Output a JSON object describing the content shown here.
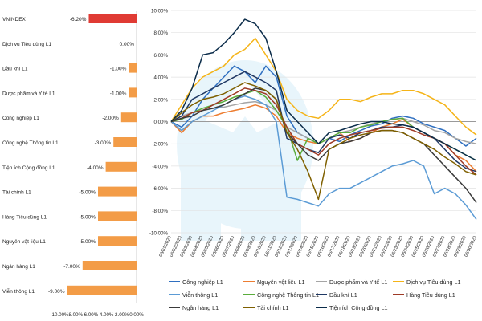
{
  "chart_data": [
    {
      "type": "bar",
      "orientation": "horizontal",
      "categories": [
        "VNINDEX",
        "Dịch vụ Tiêu dùng L1",
        "Dầu khí  L1",
        "Dược phẩm và Y tế L1",
        "Công nghiệp L1",
        "Công nghệ Thông tin L1",
        "Tiện ích Cộng đồng L1",
        "Tài chính L1",
        "Hàng Tiêu dùng L1",
        "Nguyên vật liệu L1",
        "Ngân hàng L1",
        "Viễn thông L1"
      ],
      "values": [
        -6.2,
        0.0,
        -1.0,
        -1.0,
        -2.0,
        -3.0,
        -4.0,
        -5.0,
        -5.0,
        -5.0,
        -7.0,
        -9.0
      ],
      "value_labels": [
        "-6.20%",
        "0.00%",
        "-1.00%",
        "-1.00%",
        "-2.00%",
        "-3.00%",
        "-4.00%",
        "-5.00%",
        "-5.00%",
        "-5.00%",
        "-7.00%",
        "-9.00%"
      ],
      "bar_colors": [
        "#e03b34",
        "#f39c47",
        "#f39c47",
        "#f39c47",
        "#f39c47",
        "#f39c47",
        "#f39c47",
        "#f39c47",
        "#f39c47",
        "#f39c47",
        "#f39c47",
        "#f39c47"
      ],
      "xlim": [
        -10,
        0
      ],
      "tick_labels": [
        "-10.00%",
        "-8.00%",
        "-6.00%",
        "-4.00%",
        "-2.00%",
        "0.00%"
      ]
    },
    {
      "type": "line",
      "x": [
        "06/01/2020",
        "06/02/2020",
        "06/03/2020",
        "06/04/2020",
        "06/05/2020",
        "06/06/2020",
        "06/07/2020",
        "06/08/2020",
        "06/09/2020",
        "06/10/2020",
        "06/11/2020",
        "06/12/2020",
        "06/13/2020",
        "06/14/2020",
        "06/15/2020",
        "06/16/2020",
        "06/17/2020",
        "06/18/2020",
        "06/19/2020",
        "06/20/2020",
        "06/21/2020",
        "06/22/2020",
        "06/23/2020",
        "06/24/2020",
        "06/25/2020",
        "06/26/2020",
        "06/27/2020",
        "06/28/2020",
        "06/29/2020",
        "06/30/2020"
      ],
      "ylim": [
        -10,
        10
      ],
      "y_ticks": [
        -10,
        -8,
        -6,
        -4,
        -2,
        0,
        2,
        4,
        6,
        8,
        10
      ],
      "y_tick_labels": [
        "-10.00%",
        "-8.00%",
        "-6.00%",
        "-4.00%",
        "-2.00%",
        "0.00%",
        "2.00%",
        "4.00%",
        "6.00%",
        "8.00%",
        "10.00%"
      ],
      "series": [
        {
          "name": "Công nghiệp L1",
          "color": "#2f6fc0",
          "values": [
            0,
            -0.5,
            0.5,
            2,
            3,
            4,
            5,
            4.5,
            3.5,
            5,
            4,
            0.5,
            -1,
            -1.5,
            -2,
            -1.5,
            -1.8,
            -1.2,
            -0.8,
            -0.4,
            -0.2,
            0.3,
            0.5,
            0.3,
            -0.2,
            -0.5,
            -0.8,
            -1.5,
            -2.2,
            -1.5
          ]
        },
        {
          "name": "Nguyên vật liệu L1",
          "color": "#ed7d31",
          "values": [
            0,
            -1,
            0,
            0.5,
            0.5,
            0.8,
            1,
            1.2,
            1.5,
            1.2,
            0.5,
            -1,
            -1.5,
            -1.8,
            -2,
            -1.5,
            -1,
            -1.8,
            -1.5,
            -1,
            -0.5,
            -0.2,
            0.2,
            -0.5,
            -1,
            -1.5,
            -2,
            -3,
            -3.5,
            -4.5
          ]
        },
        {
          "name": "Dược phẩm và Y tế L1",
          "color": "#a5a5a5",
          "values": [
            0,
            0.5,
            0.8,
            1,
            1.2,
            1.3,
            1.5,
            1.7,
            1.8,
            1.5,
            1,
            -0.5,
            -1,
            -1.5,
            -2,
            -1.5,
            -1,
            -0.8,
            -0.5,
            -0.2,
            0,
            0.2,
            0.3,
            0,
            -0.3,
            -0.8,
            -1,
            -1.5,
            -1.8,
            -2
          ]
        },
        {
          "name": "Dịch vụ Tiêu dùng L1",
          "color": "#f5b418",
          "values": [
            0,
            1.5,
            3,
            4,
            4.5,
            5,
            6,
            6.5,
            7.5,
            6,
            4.5,
            2,
            1,
            0.5,
            0.3,
            1,
            2,
            2,
            1.8,
            2.2,
            2.5,
            2.5,
            2.8,
            2.8,
            2.5,
            2,
            1.5,
            0.5,
            -0.5,
            -1.2
          ]
        },
        {
          "name": "Viễn thông L1",
          "color": "#5b9bd5",
          "values": [
            0,
            -0.8,
            0,
            0.5,
            1,
            1.5,
            2,
            2.3,
            2,
            1.5,
            0,
            -6.8,
            -7,
            -7.3,
            -7.6,
            -6.5,
            -6,
            -6,
            -5.5,
            -5,
            -4.5,
            -4,
            -3.8,
            -3.5,
            -4,
            -6.5,
            -6,
            -6.5,
            -7.5,
            -8.8
          ]
        },
        {
          "name": "Công nghệ Thông tin L1",
          "color": "#5aad3c",
          "values": [
            0,
            0.2,
            0.8,
            1.2,
            1.5,
            1.8,
            2.2,
            2.5,
            2.8,
            2.2,
            1,
            -0.5,
            -3.5,
            -1.5,
            -2,
            -1.5,
            -1,
            -1,
            -0.5,
            -0.3,
            0,
            0.2,
            0.3,
            -0.5,
            -1,
            -1.5,
            -2,
            -2.5,
            -3,
            -3.5
          ]
        },
        {
          "name": "Dầu khí L1",
          "color": "#1f3864",
          "values": [
            0,
            0.5,
            2,
            2.5,
            3,
            3.5,
            4,
            4.5,
            4,
            3.5,
            2.8,
            -1.5,
            -2,
            -2.5,
            -2.8,
            -1.5,
            -1.2,
            -1.5,
            -1,
            -0.8,
            -0.5,
            -0.5,
            -0.3,
            -0.5,
            -1,
            -1.5,
            -2.5,
            -3.5,
            -4.2,
            -4.5
          ]
        },
        {
          "name": "Hàng Tiêu dùng L1",
          "color": "#9e3a26",
          "values": [
            0,
            0.3,
            0.8,
            1,
            1.5,
            2,
            2.5,
            3,
            2.8,
            2.5,
            1.5,
            -0.5,
            -2,
            -2.5,
            -3,
            -2,
            -1.5,
            -1.2,
            -1,
            -0.8,
            -0.6,
            -0.5,
            -0.5,
            -0.8,
            -1.2,
            -1.5,
            -2,
            -3,
            -4,
            -4.8
          ]
        },
        {
          "name": "Ngân hàng L1",
          "color": "#3a3a3a",
          "values": [
            0,
            0.3,
            0.5,
            1,
            1.2,
            1.5,
            2,
            2.5,
            3,
            2.8,
            2,
            -1,
            -2,
            -3,
            -3.5,
            -2.5,
            -2,
            -1.8,
            -1.5,
            -1,
            -0.8,
            -0.8,
            -1,
            -1.5,
            -2,
            -3,
            -4,
            -5,
            -6,
            -7.3
          ]
        },
        {
          "name": "Tài chính L1",
          "color": "#7f6000",
          "values": [
            0,
            0.8,
            1.5,
            2,
            2.2,
            2.5,
            3,
            3.5,
            3.2,
            2.8,
            2,
            -1,
            -2.5,
            -4.5,
            -7,
            -2.5,
            -2,
            -1.5,
            -1.2,
            -1,
            -0.8,
            -0.8,
            -1,
            -1.5,
            -2,
            -2.5,
            -3.2,
            -3.8,
            -4.5,
            -4.8
          ]
        },
        {
          "name": "Tiện ích Cộng đồng L1",
          "color": "#0b2c4a",
          "values": [
            0,
            1,
            3,
            6,
            6.2,
            7,
            8,
            9.2,
            8.8,
            7.5,
            4.5,
            1,
            0,
            -1,
            -2,
            -1,
            -0.8,
            -0.5,
            -0.2,
            0,
            0,
            -0.2,
            -0.3,
            -0.5,
            -1,
            -1.5,
            -2,
            -2.5,
            -3,
            -3.5
          ]
        }
      ]
    }
  ]
}
